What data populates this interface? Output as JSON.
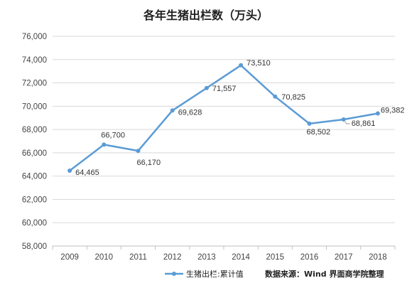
{
  "chart_data": {
    "type": "line",
    "title": "各年生猪出栏数（万头）",
    "xlabel": "",
    "ylabel": "",
    "categories": [
      "2009",
      "2010",
      "2011",
      "2012",
      "2013",
      "2014",
      "2015",
      "2016",
      "2017",
      "2018"
    ],
    "series": [
      {
        "name": "生猪出栏:累计值",
        "values": [
          64465,
          66700,
          66170,
          69628,
          71557,
          73510,
          70825,
          68502,
          68861,
          69382
        ],
        "labels": [
          "64,465",
          "66,700",
          "66,170",
          "69,628",
          "71,557",
          "73,510",
          "70,825",
          "68,502",
          "68,861",
          "69,382"
        ],
        "color": "#5b9bd5"
      }
    ],
    "ylim": [
      58000,
      76000
    ],
    "yticks": [
      "58,000",
      "60,000",
      "62,000",
      "64,000",
      "66,000",
      "68,000",
      "70,000",
      "72,000",
      "74,000",
      "76,000"
    ],
    "grid": true,
    "legend_position": "bottom"
  },
  "source_note": "数据来源：Wind  界面商学院整理"
}
